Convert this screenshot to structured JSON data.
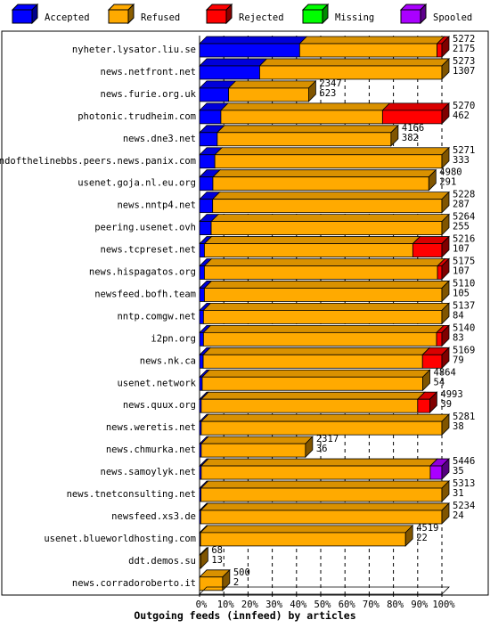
{
  "chart_data": {
    "type": "bar",
    "orientation": "horizontal",
    "stacked": true,
    "style": "3d",
    "title": "Outgoing feeds (innfeed) by articles",
    "legend_position": "top",
    "xlim": [
      0,
      100
    ],
    "x_ticks": [
      "0%",
      "10%",
      "20%",
      "30%",
      "40%",
      "50%",
      "60%",
      "70%",
      "80%",
      "90%",
      "100%"
    ],
    "grid": true,
    "series": [
      {
        "name": "Accepted",
        "color": "#0000ff"
      },
      {
        "name": "Refused",
        "color": "#ffaa00"
      },
      {
        "name": "Rejected",
        "color": "#ff0000"
      },
      {
        "name": "Missing",
        "color": "#00ff00"
      },
      {
        "name": "Spooled",
        "color": "#aa00ff"
      }
    ],
    "rows": [
      {
        "name": "nyheter.lysator.liu.se",
        "total": "5272",
        "accepted_label": "2175",
        "pct": [
          41.3,
          56.7,
          2.0,
          0,
          0
        ]
      },
      {
        "name": "news.netfront.net",
        "total": "5273",
        "accepted_label": "1307",
        "pct": [
          24.8,
          75.2,
          0,
          0,
          0
        ]
      },
      {
        "name": "news.furie.org.uk",
        "total": "2347",
        "accepted_label": "623",
        "pct": [
          12.0,
          33.0,
          0,
          0,
          0
        ]
      },
      {
        "name": "photonic.trudheim.com",
        "total": "5270",
        "accepted_label": "462",
        "pct": [
          8.8,
          66.7,
          24.5,
          0,
          0
        ]
      },
      {
        "name": "news.dne3.net",
        "total": "4166",
        "accepted_label": "382",
        "pct": [
          7.3,
          71.7,
          0,
          0,
          0
        ]
      },
      {
        "name": "endofthelinebbs.peers.news.panix.com",
        "total": "5271",
        "accepted_label": "333",
        "pct": [
          6.3,
          93.7,
          0,
          0,
          0
        ]
      },
      {
        "name": "usenet.goja.nl.eu.org",
        "total": "4980",
        "accepted_label": "291",
        "pct": [
          5.5,
          89.1,
          0,
          0,
          0
        ]
      },
      {
        "name": "news.nntp4.net",
        "total": "5228",
        "accepted_label": "287",
        "pct": [
          5.4,
          94.6,
          0,
          0,
          0
        ]
      },
      {
        "name": "peering.usenet.ovh",
        "total": "5264",
        "accepted_label": "255",
        "pct": [
          4.8,
          95.2,
          0,
          0,
          0
        ]
      },
      {
        "name": "news.tcpreset.net",
        "total": "5216",
        "accepted_label": "107",
        "pct": [
          2.0,
          86.0,
          12.0,
          0,
          0
        ]
      },
      {
        "name": "news.hispagatos.org",
        "total": "5175",
        "accepted_label": "107",
        "pct": [
          2.0,
          96.2,
          1.8,
          0,
          0
        ]
      },
      {
        "name": "newsfeed.bofh.team",
        "total": "5110",
        "accepted_label": "105",
        "pct": [
          2.0,
          98.0,
          0,
          0,
          0
        ]
      },
      {
        "name": "nntp.comgw.net",
        "total": "5137",
        "accepted_label": "84",
        "pct": [
          1.6,
          98.4,
          0,
          0,
          0
        ]
      },
      {
        "name": "i2pn.org",
        "total": "5140",
        "accepted_label": "83",
        "pct": [
          1.6,
          96.2,
          2.2,
          0,
          0
        ]
      },
      {
        "name": "news.nk.ca",
        "total": "5169",
        "accepted_label": "79",
        "pct": [
          1.5,
          90.5,
          8.0,
          0,
          0
        ]
      },
      {
        "name": "usenet.network",
        "total": "4864",
        "accepted_label": "54",
        "pct": [
          1.1,
          91.0,
          0,
          0,
          0
        ]
      },
      {
        "name": "news.quux.org",
        "total": "4993",
        "accepted_label": "39",
        "pct": [
          0.7,
          89.3,
          5.0,
          0,
          0
        ]
      },
      {
        "name": "news.weretis.net",
        "total": "5281",
        "accepted_label": "38",
        "pct": [
          0.7,
          99.3,
          0,
          0,
          0
        ]
      },
      {
        "name": "news.chmurka.net",
        "total": "2317",
        "accepted_label": "36",
        "pct": [
          0.7,
          43.0,
          0,
          0,
          0
        ]
      },
      {
        "name": "news.samoylyk.net",
        "total": "5446",
        "accepted_label": "35",
        "pct": [
          0.7,
          94.5,
          0,
          0,
          4.8
        ]
      },
      {
        "name": "news.tnetconsulting.net",
        "total": "5313",
        "accepted_label": "31",
        "pct": [
          0.6,
          99.4,
          0,
          0,
          0
        ]
      },
      {
        "name": "newsfeed.xs3.de",
        "total": "5234",
        "accepted_label": "24",
        "pct": [
          0.5,
          99.5,
          0,
          0,
          0
        ]
      },
      {
        "name": "usenet.blueworldhosting.com",
        "total": "4519",
        "accepted_label": "22",
        "pct": [
          0.4,
          84.6,
          0,
          0,
          0
        ]
      },
      {
        "name": "ddt.demos.su",
        "total": "68",
        "accepted_label": "13",
        "pct": [
          0,
          0.5,
          0,
          0,
          0
        ]
      },
      {
        "name": "news.corradoroberto.it",
        "total": "500",
        "accepted_label": "2",
        "pct": [
          0,
          9.5,
          0,
          0,
          0
        ]
      }
    ]
  }
}
